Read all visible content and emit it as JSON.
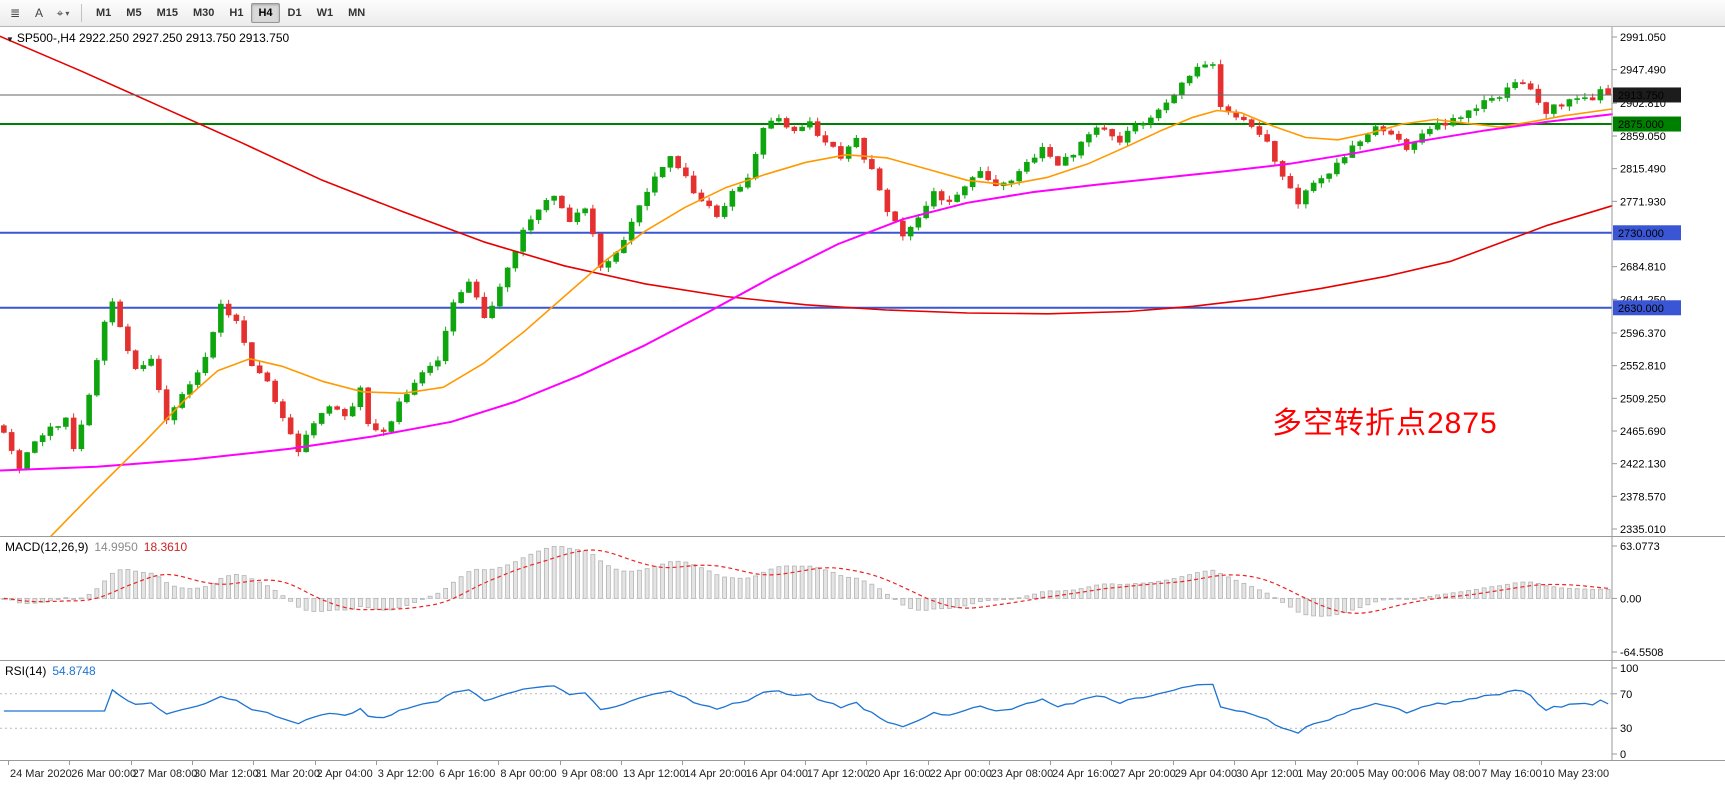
{
  "toolbar": {
    "icons": [
      {
        "name": "menu-icon",
        "glyph": "≣"
      },
      {
        "name": "text-label-icon",
        "glyph": "A"
      },
      {
        "name": "drawing-tools-icon",
        "glyph": "⌖"
      },
      {
        "name": "chevron-down-icon",
        "glyph": "▾"
      }
    ],
    "timeframes": [
      "M1",
      "M5",
      "M15",
      "M30",
      "H1",
      "H4",
      "D1",
      "W1",
      "MN"
    ],
    "active_timeframe": "H4"
  },
  "chart": {
    "collapse_arrow": "▼",
    "title": "SP500-,H4 2922.250 2927.250 2913.750 2913.750",
    "annotation": {
      "text": "多空转折点2875",
      "color": "#ff0000"
    }
  },
  "macd": {
    "label": "MACD(12,26,9)",
    "value_main": "14.9950",
    "value_signal": "18.3610"
  },
  "rsi": {
    "label": "RSI(14)",
    "value": "54.8748"
  },
  "chart_data": {
    "type": "candlestick",
    "symbol": "SP500-",
    "timeframe": "H4",
    "current_ohlc": {
      "open": 2922.25,
      "high": 2927.25,
      "low": 2913.75,
      "close": 2913.75
    },
    "bars": 208,
    "price_axis_range": [
      2335.01,
      2991.05
    ],
    "y_tick_labels": [
      "2991.050",
      "2947.490",
      "2902.810",
      "2859.050",
      "2815.490",
      "2771.930",
      "2684.810",
      "2641.250",
      "2596.370",
      "2552.810",
      "2509.250",
      "2465.690",
      "2422.130",
      "2378.570",
      "2335.010"
    ],
    "x_tick_labels": [
      "24 Mar 2020",
      "26 Mar 00:00",
      "27 Mar 08:00",
      "30 Mar 12:00",
      "31 Mar 20:00",
      "2 Apr 04:00",
      "3 Apr 12:00",
      "6 Apr 16:00",
      "8 Apr 00:00",
      "9 Apr 08:00",
      "13 Apr 12:00",
      "14 Apr 20:00",
      "16 Apr 04:00",
      "17 Apr 12:00",
      "20 Apr 16:00",
      "22 Apr 00:00",
      "23 Apr 08:00",
      "24 Apr 16:00",
      "27 Apr 20:00",
      "29 Apr 04:00",
      "30 Apr 12:00",
      "1 May 20:00",
      "5 May 00:00",
      "6 May 08:00",
      "7 May 16:00",
      "10 May 23:00"
    ],
    "up_color": "#0ea50e",
    "down_color": "#e53030",
    "close_waypoints": [
      [
        0,
        2468
      ],
      [
        2,
        2412
      ],
      [
        4,
        2455
      ],
      [
        6,
        2470
      ],
      [
        8,
        2482
      ],
      [
        9,
        2438
      ],
      [
        11,
        2510
      ],
      [
        13,
        2608
      ],
      [
        14,
        2635
      ],
      [
        16,
        2575
      ],
      [
        17,
        2545
      ],
      [
        19,
        2562
      ],
      [
        21,
        2482
      ],
      [
        23,
        2512
      ],
      [
        26,
        2562
      ],
      [
        28,
        2632
      ],
      [
        30,
        2612
      ],
      [
        32,
        2552
      ],
      [
        34,
        2532
      ],
      [
        36,
        2482
      ],
      [
        38,
        2442
      ],
      [
        40,
        2472
      ],
      [
        42,
        2502
      ],
      [
        44,
        2482
      ],
      [
        46,
        2522
      ],
      [
        47,
        2472
      ],
      [
        49,
        2462
      ],
      [
        51,
        2502
      ],
      [
        53,
        2532
      ],
      [
        56,
        2562
      ],
      [
        58,
        2638
      ],
      [
        60,
        2662
      ],
      [
        62,
        2620
      ],
      [
        63,
        2632
      ],
      [
        65,
        2682
      ],
      [
        67,
        2732
      ],
      [
        69,
        2762
      ],
      [
        71,
        2782
      ],
      [
        73,
        2748
      ],
      [
        75,
        2766
      ],
      [
        77,
        2684
      ],
      [
        79,
        2702
      ],
      [
        81,
        2742
      ],
      [
        84,
        2802
      ],
      [
        86,
        2830
      ],
      [
        88,
        2802
      ],
      [
        90,
        2772
      ],
      [
        92,
        2752
      ],
      [
        94,
        2782
      ],
      [
        96,
        2802
      ],
      [
        98,
        2868
      ],
      [
        100,
        2882
      ],
      [
        102,
        2862
      ],
      [
        104,
        2876
      ],
      [
        106,
        2852
      ],
      [
        108,
        2832
      ],
      [
        110,
        2852
      ],
      [
        112,
        2812
      ],
      [
        114,
        2762
      ],
      [
        116,
        2730
      ],
      [
        118,
        2752
      ],
      [
        120,
        2782
      ],
      [
        122,
        2772
      ],
      [
        124,
        2792
      ],
      [
        126,
        2812
      ],
      [
        128,
        2792
      ],
      [
        130,
        2802
      ],
      [
        132,
        2822
      ],
      [
        134,
        2842
      ],
      [
        136,
        2822
      ],
      [
        138,
        2832
      ],
      [
        140,
        2862
      ],
      [
        142,
        2872
      ],
      [
        144,
        2852
      ],
      [
        146,
        2872
      ],
      [
        148,
        2882
      ],
      [
        150,
        2902
      ],
      [
        152,
        2932
      ],
      [
        154,
        2950
      ],
      [
        156,
        2958
      ],
      [
        157,
        2902
      ],
      [
        159,
        2882
      ],
      [
        161,
        2872
      ],
      [
        163,
        2852
      ],
      [
        165,
        2802
      ],
      [
        167,
        2772
      ],
      [
        169,
        2792
      ],
      [
        171,
        2812
      ],
      [
        173,
        2832
      ],
      [
        175,
        2852
      ],
      [
        177,
        2872
      ],
      [
        179,
        2862
      ],
      [
        181,
        2842
      ],
      [
        183,
        2862
      ],
      [
        185,
        2872
      ],
      [
        187,
        2882
      ],
      [
        189,
        2892
      ],
      [
        191,
        2902
      ],
      [
        193,
        2912
      ],
      [
        195,
        2932
      ],
      [
        197,
        2922
      ],
      [
        199,
        2892
      ],
      [
        201,
        2902
      ],
      [
        203,
        2912
      ],
      [
        205,
        2906
      ],
      [
        206,
        2920
      ],
      [
        207,
        2913.75
      ]
    ],
    "last_bar": {
      "open": 2922.25,
      "high": 2927.25,
      "low": 2913.75,
      "close": 2913.75
    },
    "horizontal_lines": [
      {
        "value": 2875.0,
        "label": "2875.000",
        "color": "#008000"
      },
      {
        "value": 2730.0,
        "label": "2730.000",
        "color": "#3a56d4"
      },
      {
        "value": 2630.0,
        "label": "2630.000",
        "color": "#3a56d4"
      }
    ],
    "current_price_line": {
      "value": 2913.75,
      "label": "2913.750",
      "color": "#666666",
      "badge_color": "#1c1c1c"
    },
    "moving_averages": [
      {
        "name": "slow-ma-line",
        "color": "#e60000",
        "width": 1.6,
        "points": [
          [
            0,
            2992
          ],
          [
            0.05,
            2946
          ],
          [
            0.1,
            2898
          ],
          [
            0.15,
            2850
          ],
          [
            0.2,
            2800
          ],
          [
            0.25,
            2758
          ],
          [
            0.3,
            2718
          ],
          [
            0.35,
            2686
          ],
          [
            0.4,
            2662
          ],
          [
            0.45,
            2645
          ],
          [
            0.5,
            2634
          ],
          [
            0.55,
            2627
          ],
          [
            0.6,
            2623
          ],
          [
            0.65,
            2622
          ],
          [
            0.7,
            2625
          ],
          [
            0.74,
            2632
          ],
          [
            0.78,
            2642
          ],
          [
            0.82,
            2656
          ],
          [
            0.86,
            2672
          ],
          [
            0.9,
            2692
          ],
          [
            0.93,
            2716
          ],
          [
            0.96,
            2740
          ],
          [
            1.0,
            2766
          ]
        ]
      },
      {
        "name": "mid-ma-line",
        "color": "#ff00ff",
        "width": 2,
        "points": [
          [
            0,
            2413
          ],
          [
            0.06,
            2418
          ],
          [
            0.12,
            2428
          ],
          [
            0.18,
            2442
          ],
          [
            0.23,
            2458
          ],
          [
            0.28,
            2478
          ],
          [
            0.32,
            2505
          ],
          [
            0.36,
            2540
          ],
          [
            0.4,
            2580
          ],
          [
            0.44,
            2625
          ],
          [
            0.48,
            2672
          ],
          [
            0.52,
            2715
          ],
          [
            0.56,
            2748
          ],
          [
            0.6,
            2770
          ],
          [
            0.64,
            2784
          ],
          [
            0.68,
            2794
          ],
          [
            0.72,
            2803
          ],
          [
            0.76,
            2812
          ],
          [
            0.8,
            2822
          ],
          [
            0.84,
            2836
          ],
          [
            0.88,
            2852
          ],
          [
            0.92,
            2866
          ],
          [
            0.96,
            2878
          ],
          [
            1.0,
            2888
          ]
        ]
      },
      {
        "name": "fast-ma-line",
        "color": "#ff9900",
        "width": 1.6,
        "points": [
          [
            0.03,
            2322
          ],
          [
            0.06,
            2388
          ],
          [
            0.09,
            2452
          ],
          [
            0.115,
            2508
          ],
          [
            0.135,
            2546
          ],
          [
            0.155,
            2562
          ],
          [
            0.175,
            2552
          ],
          [
            0.2,
            2532
          ],
          [
            0.225,
            2518
          ],
          [
            0.25,
            2516
          ],
          [
            0.275,
            2524
          ],
          [
            0.3,
            2556
          ],
          [
            0.325,
            2598
          ],
          [
            0.35,
            2645
          ],
          [
            0.375,
            2692
          ],
          [
            0.4,
            2732
          ],
          [
            0.425,
            2764
          ],
          [
            0.45,
            2790
          ],
          [
            0.475,
            2808
          ],
          [
            0.5,
            2824
          ],
          [
            0.525,
            2834
          ],
          [
            0.55,
            2830
          ],
          [
            0.575,
            2815
          ],
          [
            0.6,
            2800
          ],
          [
            0.625,
            2794
          ],
          [
            0.65,
            2804
          ],
          [
            0.675,
            2822
          ],
          [
            0.7,
            2846
          ],
          [
            0.72,
            2866
          ],
          [
            0.74,
            2884
          ],
          [
            0.755,
            2893
          ],
          [
            0.77,
            2890
          ],
          [
            0.79,
            2872
          ],
          [
            0.81,
            2857
          ],
          [
            0.83,
            2854
          ],
          [
            0.85,
            2863
          ],
          [
            0.87,
            2875
          ],
          [
            0.89,
            2881
          ],
          [
            0.91,
            2876
          ],
          [
            0.93,
            2871
          ],
          [
            0.95,
            2878
          ],
          [
            0.97,
            2886
          ],
          [
            1.0,
            2895
          ]
        ]
      }
    ],
    "indicators": [
      {
        "type": "MACD",
        "params": [
          12,
          26,
          9
        ],
        "current_main": 14.995,
        "current_signal": 18.361,
        "scale_min": -64.5508,
        "scale_max": 63.0773,
        "axis_labels": [
          "63.0773",
          "0.00",
          "-64.5508"
        ],
        "histogram_fill": "#e4e4e4",
        "histogram_stroke": "#b4b4b4",
        "signal_color": "#ee2222"
      },
      {
        "type": "RSI",
        "params": [
          14
        ],
        "current": 54.8748,
        "scale_min": 0,
        "scale_max": 100,
        "levels": [
          70,
          30
        ],
        "axis_labels": [
          "100",
          "70",
          "30",
          "0"
        ],
        "line_color": "#1e74d2"
      }
    ]
  }
}
